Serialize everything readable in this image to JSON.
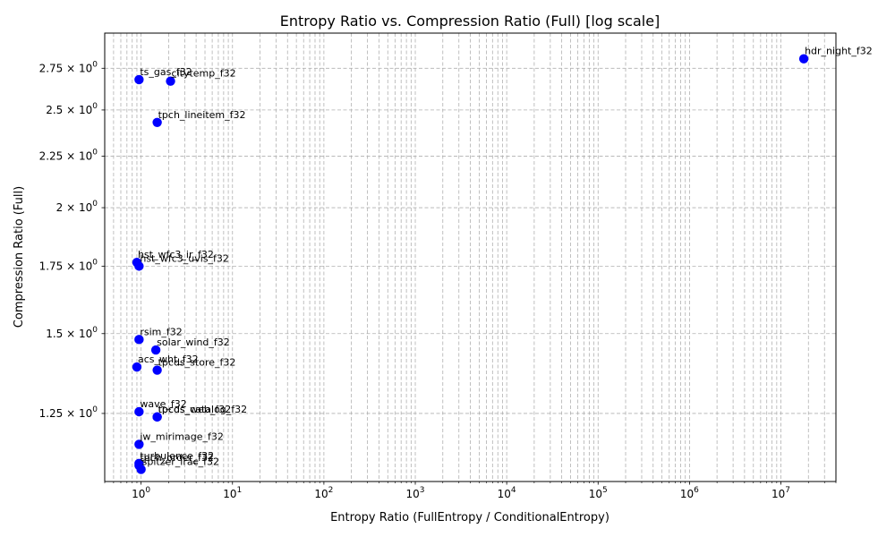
{
  "chart_data": {
    "type": "scatter",
    "title": "Entropy Ratio vs. Compression Ratio (Full) [log scale]",
    "xlabel": "Entropy Ratio (FullEntropy / ConditionalEntropy)",
    "ylabel": "Compression Ratio (Full)",
    "xscale": "log",
    "yscale": "log",
    "xlim": [
      0.4,
      40000000
    ],
    "ylim": [
      1.07,
      2.98
    ],
    "grid": true,
    "marker_color": "#0000ff",
    "x_ticks": [
      {
        "value": 1,
        "base": "10",
        "exp": "0"
      },
      {
        "value": 10,
        "base": "10",
        "exp": "1"
      },
      {
        "value": 100,
        "base": "10",
        "exp": "2"
      },
      {
        "value": 1000,
        "base": "10",
        "exp": "3"
      },
      {
        "value": 10000,
        "base": "10",
        "exp": "4"
      },
      {
        "value": 100000,
        "base": "10",
        "exp": "5"
      },
      {
        "value": 1000000,
        "base": "10",
        "exp": "6"
      },
      {
        "value": 10000000,
        "base": "10",
        "exp": "7"
      }
    ],
    "y_ticks": [
      {
        "value": 1.25,
        "text": "1.25 × 10",
        "exp": "0"
      },
      {
        "value": 1.5,
        "text": "1.5 × 10",
        "exp": "0"
      },
      {
        "value": 1.75,
        "text": "1.75 × 10",
        "exp": "0"
      },
      {
        "value": 2.0,
        "text": "2 × 10",
        "exp": "0"
      },
      {
        "value": 2.25,
        "text": "2.25 × 10",
        "exp": "0"
      },
      {
        "value": 2.5,
        "text": "2.5 × 10",
        "exp": "0"
      },
      {
        "value": 2.75,
        "text": "2.75 × 10",
        "exp": "0"
      }
    ],
    "points": [
      {
        "label": "hdr_night_f32",
        "x": 17800000,
        "y": 2.81
      },
      {
        "label": "ts_gas_f32",
        "x": 0.95,
        "y": 2.68
      },
      {
        "label": "citytemp_f32",
        "x": 2.1,
        "y": 2.67
      },
      {
        "label": "tpch_lineitem_f32",
        "x": 1.5,
        "y": 2.43
      },
      {
        "label": "hst_wfc3_ir_f32",
        "x": 0.9,
        "y": 1.765
      },
      {
        "label": "hst_wfc3_uvis_f32",
        "x": 0.95,
        "y": 1.75
      },
      {
        "label": "rsim_f32",
        "x": 0.95,
        "y": 1.48
      },
      {
        "label": "solar_wind_f32",
        "x": 1.45,
        "y": 1.445
      },
      {
        "label": "acs_wht_f32",
        "x": 0.9,
        "y": 1.39
      },
      {
        "label": "tpcds_store_f32",
        "x": 1.5,
        "y": 1.38
      },
      {
        "label": "wave_f32",
        "x": 0.95,
        "y": 1.255
      },
      {
        "label": "tpcds_catalog_f32",
        "x": 1.5,
        "y": 1.24
      },
      {
        "label": "tpcds_web_f32",
        "x": 1.5,
        "y": 1.24
      },
      {
        "label": "jw_mirimage_f32",
        "x": 0.95,
        "y": 1.165
      },
      {
        "label": "turbulence_f32",
        "x": 0.95,
        "y": 1.115
      },
      {
        "label": "tpch_order_f32",
        "x": 0.95,
        "y": 1.11
      },
      {
        "label": "spitzer_irac_f32",
        "x": 1.0,
        "y": 1.1
      }
    ]
  }
}
